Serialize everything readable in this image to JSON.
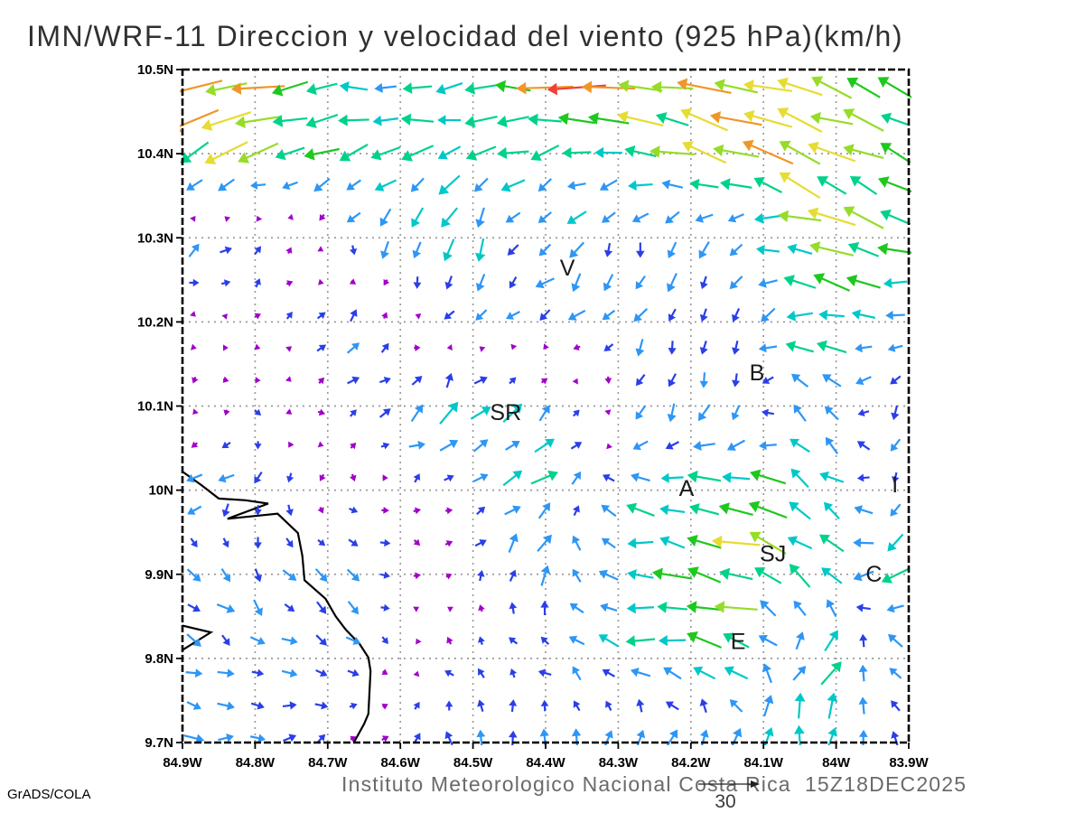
{
  "title": "IMN/WRF-11 Direccion y velocidad del viento (925 hPa)(km/h)",
  "footer": {
    "caption": "Instituto Meteorologico Nacional Costa Rica  15Z18DEC2025",
    "credit": "GrADS/COLA"
  },
  "chart_data": {
    "type": "vector_field",
    "title": "IMN/WRF-11 Direccion y velocidad del viento (925 hPa)(km/h)",
    "units": "km/h",
    "level": "925 hPa",
    "valid_time": "15Z18DEC2025",
    "lon_range": [
      -84.9,
      -83.9
    ],
    "lat_range": [
      9.7,
      10.5
    ],
    "x_axis": {
      "ticks": [
        "84.9W",
        "84.8W",
        "84.7W",
        "84.6W",
        "84.5W",
        "84.4W",
        "84.3W",
        "84.2W",
        "84.1W",
        "84W",
        "83.9W"
      ]
    },
    "y_axis": {
      "ticks": [
        "10.5N",
        "10.4N",
        "10.3N",
        "10.2N",
        "10.1N",
        "10N",
        "9.9N",
        "9.8N",
        "9.7N"
      ]
    },
    "grid_on": true,
    "arrow_grid": {
      "cols": 23,
      "rows": 21
    },
    "reference_vector": {
      "value": 30,
      "label": "30",
      "units": "km/h"
    },
    "speed_scale_kmh": [
      {
        "max": 4.5,
        "color": "#A000C8"
      },
      {
        "max": 8.5,
        "color": "#2A3FE8"
      },
      {
        "max": 12.5,
        "color": "#2E96F5"
      },
      {
        "max": 16,
        "color": "#00C8C8"
      },
      {
        "max": 19.5,
        "color": "#00D28C"
      },
      {
        "max": 23,
        "color": "#1EC81E"
      },
      {
        "max": 26,
        "color": "#96DC28"
      },
      {
        "max": 29,
        "color": "#E6DC32"
      },
      {
        "max": 32.5,
        "color": "#F09628"
      },
      {
        "max": 999,
        "color": "#F04038"
      }
    ],
    "stations": [
      {
        "label": "V",
        "lon": -84.37,
        "lat": 10.264
      },
      {
        "label": "B",
        "lon": -84.109,
        "lat": 10.139
      },
      {
        "label": "SR",
        "lon": -84.455,
        "lat": 10.092
      },
      {
        "label": "A",
        "lon": -84.206,
        "lat": 10.002
      },
      {
        "label": "SJ",
        "lon": -84.087,
        "lat": 9.924
      },
      {
        "label": "C",
        "lon": -83.948,
        "lat": 9.9
      },
      {
        "label": "E",
        "lon": -84.135,
        "lat": 9.82
      },
      {
        "label": "I",
        "lon": -83.919,
        "lat": 10.006
      }
    ],
    "coastline": [
      [
        [
          -84.9,
          10.022
        ],
        [
          -84.874,
          10.006
        ],
        [
          -84.85,
          9.99
        ],
        [
          -84.813,
          9.988
        ],
        [
          -84.782,
          9.984
        ],
        [
          -84.838,
          9.966
        ],
        [
          -84.769,
          9.972
        ],
        [
          -84.741,
          9.949
        ],
        [
          -84.735,
          9.922
        ],
        [
          -84.732,
          9.893
        ],
        [
          -84.703,
          9.871
        ],
        [
          -84.689,
          9.85
        ],
        [
          -84.675,
          9.834
        ],
        [
          -84.656,
          9.817
        ],
        [
          -84.644,
          9.801
        ],
        [
          -84.641,
          9.785
        ],
        [
          -84.644,
          9.734
        ],
        [
          -84.65,
          9.722
        ],
        [
          -84.664,
          9.7
        ]
      ],
      [
        [
          -84.9,
          9.839
        ],
        [
          -84.861,
          9.831
        ],
        [
          -84.9,
          9.81
        ]
      ]
    ],
    "wind_field": {
      "units": "km/h",
      "lons": [
        -84.9,
        -84.775,
        -84.65,
        -84.525,
        -84.4,
        -84.275,
        -84.15,
        -84.025,
        -83.9
      ],
      "lats": [
        10.5,
        10.4,
        10.3,
        10.2,
        10.1,
        10.0,
        9.9,
        9.8,
        9.7
      ],
      "u": [
        [
          -28,
          -30,
          -13,
          -15,
          -30,
          -30,
          -26,
          -22,
          -18
        ],
        [
          -22,
          -18,
          -15,
          -16,
          -14,
          -18,
          -26,
          -22,
          -18
        ],
        [
          8,
          5,
          -2,
          -4,
          -6,
          -4,
          -2,
          -22,
          -16
        ],
        [
          2,
          3,
          6,
          -6,
          -8,
          -4,
          -2,
          -20,
          -8
        ],
        [
          1,
          2,
          6,
          10,
          8,
          -2,
          -4,
          -10,
          -2
        ],
        [
          -8,
          -6,
          3,
          4,
          12,
          -14,
          -20,
          -14,
          -3
        ],
        [
          6,
          6,
          5,
          3,
          2,
          -16,
          -24,
          -12,
          -14
        ],
        [
          8,
          8,
          8,
          -6,
          -6,
          -14,
          -20,
          12,
          -12
        ],
        [
          10,
          8,
          2,
          1,
          2,
          2,
          6,
          2,
          -6
        ]
      ],
      "v": [
        [
          -6,
          -4,
          0,
          0,
          0,
          2,
          4,
          8,
          9
        ],
        [
          -12,
          -9,
          -6,
          -4,
          -4,
          2,
          9,
          9,
          8
        ],
        [
          7,
          4,
          -10,
          -12,
          -8,
          -10,
          -10,
          9,
          7
        ],
        [
          -3,
          3,
          5,
          -4,
          -5,
          -8,
          -8,
          0,
          -4
        ],
        [
          -3,
          -4,
          6,
          10,
          8,
          -8,
          -10,
          10,
          -10
        ],
        [
          -6,
          -5,
          -4,
          4,
          9,
          4,
          5,
          12,
          -9
        ],
        [
          -8,
          -7,
          -6,
          2,
          12,
          2,
          6,
          10,
          -14
        ],
        [
          -5,
          -4,
          -2,
          4,
          4,
          2,
          4,
          14,
          6
        ],
        [
          0,
          2,
          3,
          8,
          9,
          10,
          12,
          12,
          6
        ]
      ]
    }
  }
}
